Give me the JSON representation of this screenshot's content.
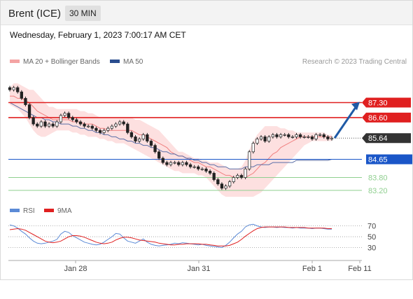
{
  "header": {
    "instrument": "Brent (ICE)",
    "timeframe": "30 MIN"
  },
  "date_line": "Wednesday, February 1, 2023 7:00:17 AM CET",
  "legend": {
    "ma20_bb": "MA 20 + Bollinger Bands",
    "ma50": "MA 50",
    "copyright": "Research © 2023 Trading Central"
  },
  "rsi_legend": {
    "rsi": "RSI",
    "ma": "9MA"
  },
  "colors": {
    "up_candle": "#ffffff",
    "down_candle": "#222222",
    "bollinger_fill": "#fde0e0",
    "ma20": "#f08080",
    "ma50": "#5b6fa8",
    "resistance": "#e02020",
    "support": "#8fcf8f",
    "pivot": "#1a56c8",
    "current": "#333333",
    "rsi": "#5b8ad6",
    "rsi_ma": "#e02020",
    "arrow": "#1f5aa6"
  },
  "chart_data": {
    "type": "candlestick",
    "price_axis": {
      "min": 82.9,
      "max": 88.2
    },
    "x_axis": {
      "labels": [
        "Jan 28",
        "Jan 31",
        "Feb 1",
        "Feb 11"
      ]
    },
    "levels": [
      {
        "label": "87.30",
        "value": 87.3,
        "kind": "resistance"
      },
      {
        "label": "86.60",
        "value": 86.6,
        "kind": "resistance"
      },
      {
        "label": "85.64",
        "value": 85.64,
        "kind": "current"
      },
      {
        "label": "84.65",
        "value": 84.65,
        "kind": "pivot"
      },
      {
        "label": "83.80",
        "value": 83.8,
        "kind": "support"
      },
      {
        "label": "83.20",
        "value": 83.2,
        "kind": "support"
      }
    ],
    "arrow": {
      "from": 85.64,
      "to": 87.3
    },
    "close": [
      87.9,
      88.0,
      87.8,
      87.5,
      87.2,
      86.6,
      86.3,
      86.2,
      86.4,
      86.2,
      86.3,
      86.2,
      86.4,
      86.7,
      86.8,
      86.6,
      86.5,
      86.4,
      86.3,
      86.2,
      86.2,
      86.1,
      86.0,
      85.9,
      86.0,
      86.1,
      86.2,
      86.3,
      86.4,
      86.3,
      85.9,
      85.7,
      85.5,
      85.6,
      85.8,
      85.5,
      85.3,
      85.0,
      84.7,
      84.5,
      84.4,
      84.5,
      84.5,
      84.4,
      84.5,
      84.4,
      84.3,
      84.3,
      84.2,
      84.2,
      84.1,
      84.0,
      83.7,
      83.5,
      83.3,
      83.4,
      83.6,
      83.8,
      83.9,
      83.8,
      84.2,
      85.0,
      85.4,
      85.6,
      85.7,
      85.5,
      85.7,
      85.8,
      85.7,
      85.8,
      85.8,
      85.7,
      85.7,
      85.8,
      85.7,
      85.7,
      85.7,
      85.6,
      85.8,
      85.8,
      85.7,
      85.6,
      85.64
    ],
    "ma20": [
      87.6,
      87.6,
      87.5,
      87.5,
      87.4,
      87.3,
      87.1,
      86.9,
      86.8,
      86.7,
      86.6,
      86.5,
      86.5,
      86.5,
      86.5,
      86.5,
      86.4,
      86.4,
      86.4,
      86.3,
      86.3,
      86.3,
      86.2,
      86.1,
      86.1,
      86.0,
      86.0,
      86.0,
      86.0,
      86.0,
      86.0,
      86.0,
      85.9,
      85.8,
      85.8,
      85.7,
      85.6,
      85.5,
      85.4,
      85.3,
      85.2,
      85.0,
      84.9,
      84.8,
      84.8,
      84.7,
      84.6,
      84.5,
      84.5,
      84.4,
      84.3,
      84.3,
      84.2,
      84.1,
      84.0,
      83.9,
      83.9,
      83.8,
      83.8,
      83.8,
      83.8,
      83.9,
      84.0,
      84.2,
      84.4,
      84.5,
      84.7,
      84.9,
      85.0,
      85.2,
      85.3,
      85.4,
      85.5,
      85.6,
      85.7,
      85.7,
      85.7,
      85.7,
      85.7,
      85.7,
      85.7,
      85.7,
      85.7
    ],
    "bb_upper": [
      88.0,
      88.2,
      88.2,
      88.1,
      88.0,
      87.9,
      87.9,
      87.7,
      87.5,
      87.3,
      87.1,
      87.1,
      87.0,
      87.0,
      87.0,
      87.0,
      87.0,
      87.0,
      86.9,
      86.9,
      86.8,
      86.8,
      86.7,
      86.6,
      86.6,
      86.6,
      86.6,
      86.6,
      86.6,
      86.6,
      86.6,
      86.6,
      86.5,
      86.5,
      86.4,
      86.3,
      86.2,
      86.1,
      86.0,
      85.8,
      85.6,
      85.4,
      85.2,
      85.0,
      85.0,
      84.9,
      84.8,
      84.7,
      84.7,
      84.6,
      84.6,
      84.5,
      84.5,
      84.5,
      84.4,
      84.3,
      84.2,
      84.2,
      84.2,
      84.3,
      84.6,
      85.1,
      85.5,
      85.8,
      86.0,
      86.2,
      86.2,
      86.2,
      86.2,
      86.1,
      86.1,
      86.0,
      86.0,
      85.9,
      85.9,
      85.9,
      85.9,
      85.9,
      85.9,
      85.9,
      85.9,
      85.8,
      85.8
    ],
    "bb_lower": [
      87.2,
      87.1,
      87.0,
      86.8,
      86.6,
      86.3,
      86.0,
      85.8,
      85.7,
      85.7,
      85.8,
      85.9,
      86.0,
      86.0,
      86.0,
      86.0,
      85.9,
      85.9,
      85.8,
      85.8,
      85.7,
      85.7,
      85.7,
      85.6,
      85.6,
      85.5,
      85.5,
      85.4,
      85.4,
      85.4,
      85.3,
      85.2,
      85.1,
      85.0,
      84.9,
      84.8,
      84.7,
      84.6,
      84.5,
      84.4,
      84.3,
      84.2,
      84.1,
      84.1,
      84.0,
      84.0,
      84.0,
      84.0,
      83.9,
      83.9,
      83.8,
      83.6,
      83.4,
      83.2,
      83.0,
      82.9,
      82.9,
      82.9,
      82.9,
      82.9,
      82.9,
      82.9,
      82.9,
      83.0,
      83.1,
      83.3,
      83.5,
      83.7,
      83.9,
      84.1,
      84.3,
      84.5,
      84.7,
      84.9,
      85.1,
      85.3,
      85.4,
      85.5,
      85.5,
      85.5,
      85.5,
      85.5,
      85.5
    ],
    "ma50": [
      87.3,
      87.2,
      87.1,
      87.0,
      86.9,
      86.8,
      86.7,
      86.6,
      86.6,
      86.5,
      86.5,
      86.4,
      86.4,
      86.3,
      86.3,
      86.3,
      86.2,
      86.2,
      86.1,
      86.1,
      86.0,
      86.0,
      85.9,
      85.9,
      85.8,
      85.8,
      85.7,
      85.7,
      85.6,
      85.6,
      85.5,
      85.5,
      85.4,
      85.4,
      85.3,
      85.3,
      85.2,
      85.2,
      85.1,
      85.0,
      85.0,
      84.9,
      84.9,
      84.8,
      84.8,
      84.7,
      84.7,
      84.6,
      84.6,
      84.5,
      84.5,
      84.4,
      84.4,
      84.3,
      84.3,
      84.3,
      84.2,
      84.2,
      84.2,
      84.2,
      84.3,
      84.3,
      84.3,
      84.4,
      84.4,
      84.4,
      84.4,
      84.5,
      84.5,
      84.5,
      84.5,
      84.5,
      84.5,
      84.6,
      84.6,
      84.6,
      84.6,
      84.6,
      84.6,
      84.6,
      84.6,
      84.6,
      84.65
    ],
    "rsi_axis": {
      "ticks": [
        "70",
        "50",
        "30"
      ],
      "values": [
        70,
        50,
        30
      ],
      "min": 10,
      "max": 85
    },
    "rsi": [
      72,
      70,
      66,
      60,
      55,
      48,
      42,
      38,
      37,
      38,
      40,
      42,
      45,
      55,
      60,
      58,
      52,
      48,
      44,
      40,
      38,
      36,
      35,
      36,
      40,
      45,
      50,
      56,
      55,
      48,
      42,
      40,
      38,
      42,
      46,
      40,
      36,
      34,
      33,
      34,
      35,
      36,
      38,
      37,
      39,
      38,
      37,
      36,
      35,
      36,
      34,
      33,
      32,
      31,
      30,
      34,
      40,
      48,
      55,
      60,
      68,
      72,
      73,
      70,
      68,
      67,
      68,
      68,
      67,
      68,
      67,
      67,
      66,
      67,
      66,
      66,
      66,
      65,
      66,
      66,
      65,
      64,
      64
    ],
    "rsi_ma": [
      63,
      64,
      65,
      64,
      62,
      58,
      54,
      50,
      46,
      42,
      40,
      39,
      40,
      42,
      46,
      50,
      52,
      52,
      51,
      49,
      46,
      43,
      40,
      38,
      37,
      38,
      40,
      44,
      47,
      49,
      49,
      48,
      46,
      44,
      43,
      42,
      41,
      40,
      38,
      37,
      36,
      35,
      35,
      36,
      36,
      37,
      37,
      37,
      37,
      36,
      36,
      35,
      34,
      33,
      33,
      33,
      34,
      37,
      40,
      45,
      51,
      56,
      61,
      65,
      67,
      68,
      68,
      68,
      68,
      68,
      68,
      67,
      67,
      67,
      67,
      67,
      66,
      66,
      66,
      66,
      66,
      65,
      65
    ]
  }
}
